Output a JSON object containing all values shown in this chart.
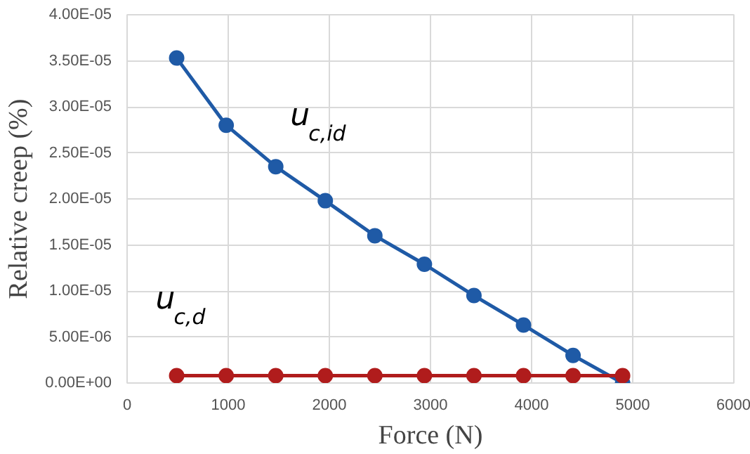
{
  "chart_data": {
    "type": "line",
    "xlabel": "Force (N)",
    "ylabel": "Relative creep (%)",
    "x": [
      490,
      980,
      1470,
      1960,
      2450,
      2940,
      3430,
      3920,
      4410,
      4900
    ],
    "series": [
      {
        "name": "u$_{c,id}$",
        "color": "#1f5aa6",
        "values": [
          3.53e-05,
          2.8e-05,
          2.35e-05,
          1.98e-05,
          1.6e-05,
          1.29e-05,
          9.5e-06,
          6.3e-06,
          3e-06,
          0.0
        ]
      },
      {
        "name": "u$_{c,d}$",
        "color": "#b01c1c",
        "values": [
          8e-07,
          8e-07,
          8e-07,
          8e-07,
          8e-07,
          8e-07,
          8e-07,
          8e-07,
          8e-07,
          8e-07
        ]
      }
    ],
    "xlim": [
      0,
      6000
    ],
    "xticks": [
      0,
      1000,
      2000,
      3000,
      4000,
      5000,
      6000
    ],
    "ylim": [
      0,
      4e-05
    ],
    "yticks": [
      {
        "value": 0,
        "label": "0.00E+00"
      },
      {
        "value": 5e-06,
        "label": "5.00E-06"
      },
      {
        "value": 1e-05,
        "label": "1.00E-05"
      },
      {
        "value": 1.5e-05,
        "label": "1.50E-05"
      },
      {
        "value": 2e-05,
        "label": "2.00E-05"
      },
      {
        "value": 2.5e-05,
        "label": "2.50E-05"
      },
      {
        "value": 3e-05,
        "label": "3.00E-05"
      },
      {
        "value": 3.5e-05,
        "label": "3.50E-05"
      },
      {
        "value": 4e-05,
        "label": "4.00E-05"
      }
    ],
    "grid": true,
    "marker": "circle",
    "line_style": "solid"
  }
}
